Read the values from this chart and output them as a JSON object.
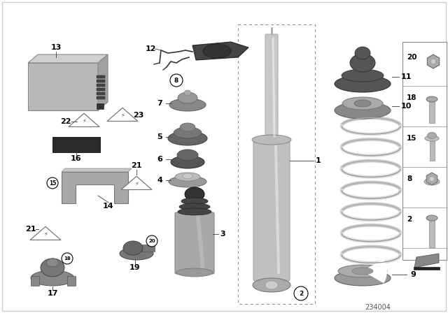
{
  "background_color": "#ffffff",
  "fig_width": 6.4,
  "fig_height": 4.48,
  "dpi": 100,
  "diagram_note": "234004",
  "label_fontsize": 8.0,
  "small_label_fontsize": 7.0,
  "parts_color_dark": "#555555",
  "parts_color_mid": "#888888",
  "parts_color_light": "#c0c0c0",
  "parts_color_lighter": "#d8d8d8",
  "text_color": "#000000",
  "line_color": "#666666",
  "border_color": "#999999"
}
